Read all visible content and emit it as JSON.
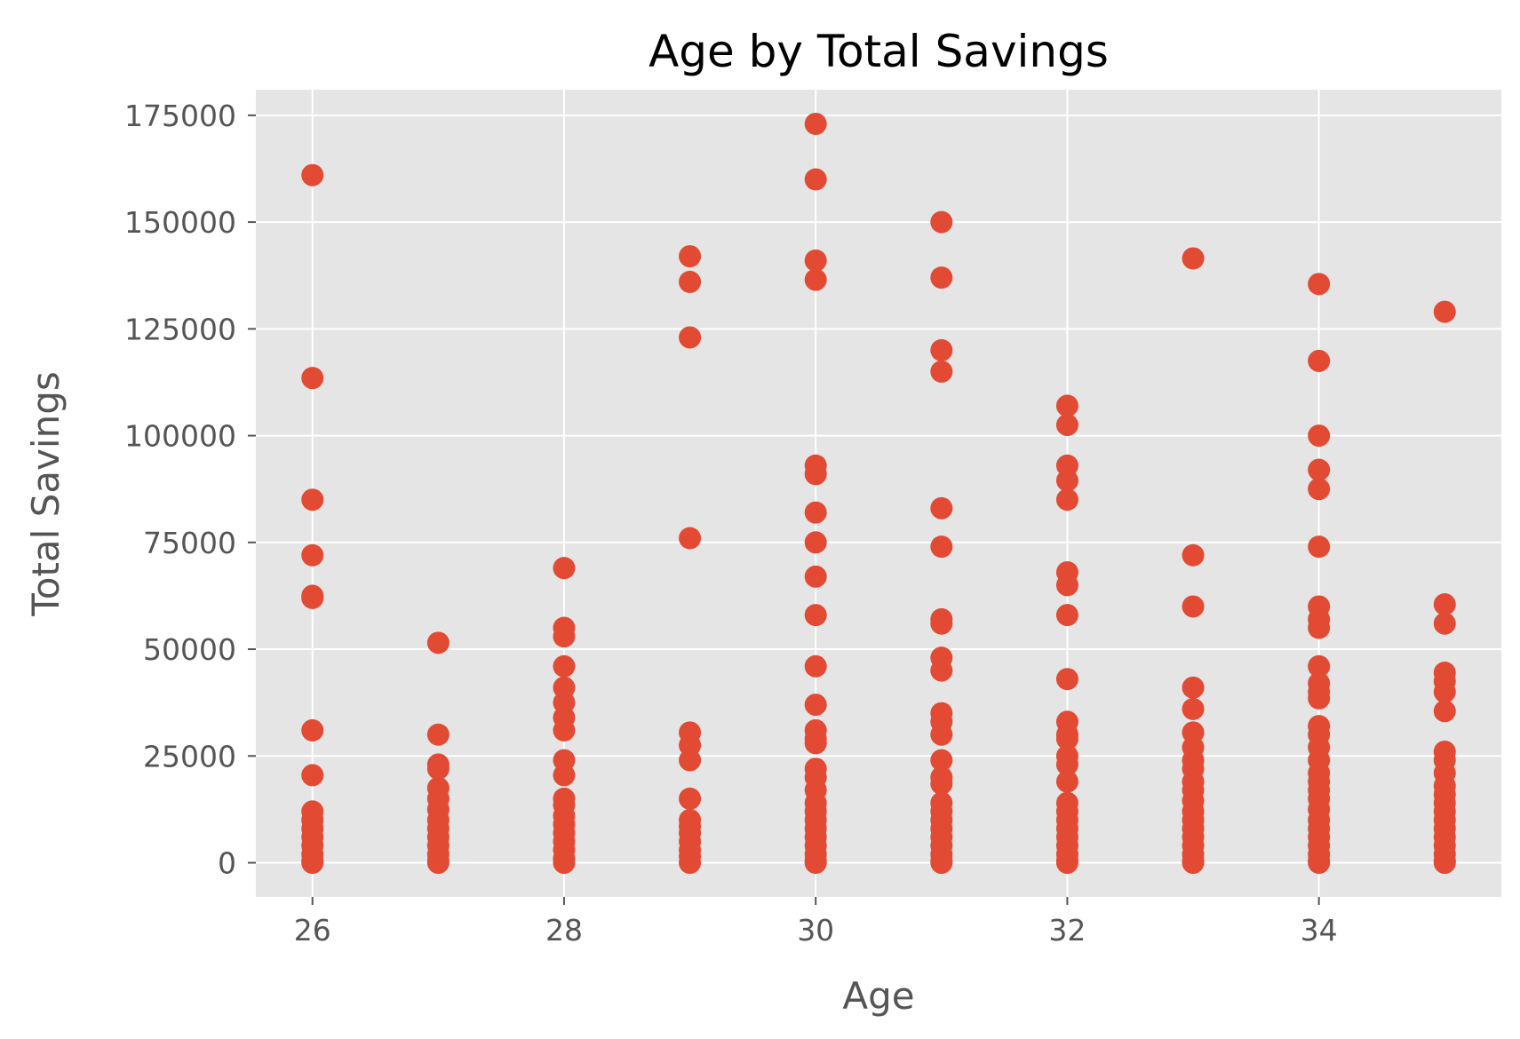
{
  "chart_data": {
    "type": "scatter",
    "title": "Age by Total Savings",
    "xlabel": "Age",
    "ylabel": "Total Savings",
    "xlim": [
      25.55,
      35.45
    ],
    "ylim": [
      -8000,
      181000
    ],
    "xticks": [
      26,
      28,
      30,
      32,
      34
    ],
    "xtick_labels": [
      "26",
      "28",
      "30",
      "32",
      "34"
    ],
    "yticks": [
      0,
      25000,
      50000,
      75000,
      100000,
      125000,
      150000,
      175000
    ],
    "ytick_labels": [
      "0",
      "25000",
      "50000",
      "75000",
      "100000",
      "125000",
      "150000",
      "175000"
    ],
    "grid": true,
    "colors": {
      "marker": "#E24A33",
      "plot_background": "#E5E5E5",
      "grid": "#FFFFFF"
    },
    "series": [
      {
        "points": [
          [
            26,
            161000
          ],
          [
            26,
            113500
          ],
          [
            26,
            85000
          ],
          [
            26,
            72000
          ],
          [
            26,
            62500
          ],
          [
            26,
            62000
          ],
          [
            26,
            31000
          ],
          [
            26,
            20500
          ],
          [
            26,
            12000
          ],
          [
            26,
            10000
          ],
          [
            26,
            8000
          ],
          [
            26,
            6000
          ],
          [
            26,
            4000
          ],
          [
            26,
            2000
          ],
          [
            26,
            500
          ],
          [
            26,
            0
          ],
          [
            27,
            51500
          ],
          [
            27,
            30000
          ],
          [
            27,
            23000
          ],
          [
            27,
            22000
          ],
          [
            27,
            17500
          ],
          [
            27,
            15000
          ],
          [
            27,
            12500
          ],
          [
            27,
            10000
          ],
          [
            27,
            8000
          ],
          [
            27,
            6000
          ],
          [
            27,
            4000
          ],
          [
            27,
            2000
          ],
          [
            27,
            500
          ],
          [
            27,
            0
          ],
          [
            28,
            69000
          ],
          [
            28,
            55000
          ],
          [
            28,
            53000
          ],
          [
            28,
            46000
          ],
          [
            28,
            41000
          ],
          [
            28,
            37500
          ],
          [
            28,
            34000
          ],
          [
            28,
            31000
          ],
          [
            28,
            24000
          ],
          [
            28,
            20500
          ],
          [
            28,
            15000
          ],
          [
            28,
            13500
          ],
          [
            28,
            11000
          ],
          [
            28,
            9000
          ],
          [
            28,
            7000
          ],
          [
            28,
            5000
          ],
          [
            28,
            3000
          ],
          [
            28,
            1000
          ],
          [
            28,
            0
          ],
          [
            29,
            142000
          ],
          [
            29,
            136000
          ],
          [
            29,
            123000
          ],
          [
            29,
            76000
          ],
          [
            29,
            30500
          ],
          [
            29,
            27500
          ],
          [
            29,
            24000
          ],
          [
            29,
            15000
          ],
          [
            29,
            10000
          ],
          [
            29,
            8500
          ],
          [
            29,
            7000
          ],
          [
            29,
            5000
          ],
          [
            29,
            3000
          ],
          [
            29,
            1500
          ],
          [
            29,
            0
          ],
          [
            30,
            173000
          ],
          [
            30,
            160000
          ],
          [
            30,
            141000
          ],
          [
            30,
            136500
          ],
          [
            30,
            93000
          ],
          [
            30,
            91000
          ],
          [
            30,
            82000
          ],
          [
            30,
            75000
          ],
          [
            30,
            67000
          ],
          [
            30,
            58000
          ],
          [
            30,
            46000
          ],
          [
            30,
            37000
          ],
          [
            30,
            31000
          ],
          [
            30,
            29000
          ],
          [
            30,
            28000
          ],
          [
            30,
            22000
          ],
          [
            30,
            20000
          ],
          [
            30,
            17000
          ],
          [
            30,
            14000
          ],
          [
            30,
            12000
          ],
          [
            30,
            10000
          ],
          [
            30,
            8000
          ],
          [
            30,
            6000
          ],
          [
            30,
            4000
          ],
          [
            30,
            2000
          ],
          [
            30,
            500
          ],
          [
            30,
            0
          ],
          [
            31,
            150000
          ],
          [
            31,
            137000
          ],
          [
            31,
            120000
          ],
          [
            31,
            115000
          ],
          [
            31,
            83000
          ],
          [
            31,
            74000
          ],
          [
            31,
            57000
          ],
          [
            31,
            56000
          ],
          [
            31,
            48000
          ],
          [
            31,
            45000
          ],
          [
            31,
            35000
          ],
          [
            31,
            33000
          ],
          [
            31,
            30000
          ],
          [
            31,
            24000
          ],
          [
            31,
            20000
          ],
          [
            31,
            18500
          ],
          [
            31,
            14000
          ],
          [
            31,
            12000
          ],
          [
            31,
            10000
          ],
          [
            31,
            8000
          ],
          [
            31,
            6000
          ],
          [
            31,
            4000
          ],
          [
            31,
            2000
          ],
          [
            31,
            500
          ],
          [
            31,
            0
          ],
          [
            32,
            107000
          ],
          [
            32,
            102500
          ],
          [
            32,
            93000
          ],
          [
            32,
            89500
          ],
          [
            32,
            85000
          ],
          [
            32,
            68000
          ],
          [
            32,
            65000
          ],
          [
            32,
            58000
          ],
          [
            32,
            43000
          ],
          [
            32,
            33000
          ],
          [
            32,
            30000
          ],
          [
            32,
            29000
          ],
          [
            32,
            25000
          ],
          [
            32,
            23000
          ],
          [
            32,
            19000
          ],
          [
            32,
            14000
          ],
          [
            32,
            12000
          ],
          [
            32,
            10000
          ],
          [
            32,
            8000
          ],
          [
            32,
            6000
          ],
          [
            32,
            4000
          ],
          [
            32,
            2000
          ],
          [
            32,
            500
          ],
          [
            32,
            0
          ],
          [
            33,
            141500
          ],
          [
            33,
            72000
          ],
          [
            33,
            60000
          ],
          [
            33,
            41000
          ],
          [
            33,
            36000
          ],
          [
            33,
            30500
          ],
          [
            33,
            27000
          ],
          [
            33,
            24000
          ],
          [
            33,
            22000
          ],
          [
            33,
            19000
          ],
          [
            33,
            17000
          ],
          [
            33,
            14500
          ],
          [
            33,
            12000
          ],
          [
            33,
            10000
          ],
          [
            33,
            8000
          ],
          [
            33,
            6000
          ],
          [
            33,
            4000
          ],
          [
            33,
            2000
          ],
          [
            33,
            500
          ],
          [
            33,
            0
          ],
          [
            34,
            135500
          ],
          [
            34,
            117500
          ],
          [
            34,
            100000
          ],
          [
            34,
            92000
          ],
          [
            34,
            87500
          ],
          [
            34,
            74000
          ],
          [
            34,
            60000
          ],
          [
            34,
            57000
          ],
          [
            34,
            55000
          ],
          [
            34,
            46000
          ],
          [
            34,
            42000
          ],
          [
            34,
            40000
          ],
          [
            34,
            38500
          ],
          [
            34,
            32000
          ],
          [
            34,
            30000
          ],
          [
            34,
            27000
          ],
          [
            34,
            24000
          ],
          [
            34,
            21000
          ],
          [
            34,
            19000
          ],
          [
            34,
            17000
          ],
          [
            34,
            15000
          ],
          [
            34,
            12500
          ],
          [
            34,
            10000
          ],
          [
            34,
            8000
          ],
          [
            34,
            6000
          ],
          [
            34,
            4000
          ],
          [
            34,
            2000
          ],
          [
            34,
            500
          ],
          [
            34,
            0
          ],
          [
            35,
            129000
          ],
          [
            35,
            60500
          ],
          [
            35,
            56000
          ],
          [
            35,
            44500
          ],
          [
            35,
            42500
          ],
          [
            35,
            40000
          ],
          [
            35,
            35500
          ],
          [
            35,
            26000
          ],
          [
            35,
            24000
          ],
          [
            35,
            21000
          ],
          [
            35,
            18000
          ],
          [
            35,
            16000
          ],
          [
            35,
            14000
          ],
          [
            35,
            12000
          ],
          [
            35,
            10000
          ],
          [
            35,
            8000
          ],
          [
            35,
            6000
          ],
          [
            35,
            4000
          ],
          [
            35,
            2000
          ],
          [
            35,
            500
          ],
          [
            35,
            0
          ]
        ]
      }
    ]
  }
}
